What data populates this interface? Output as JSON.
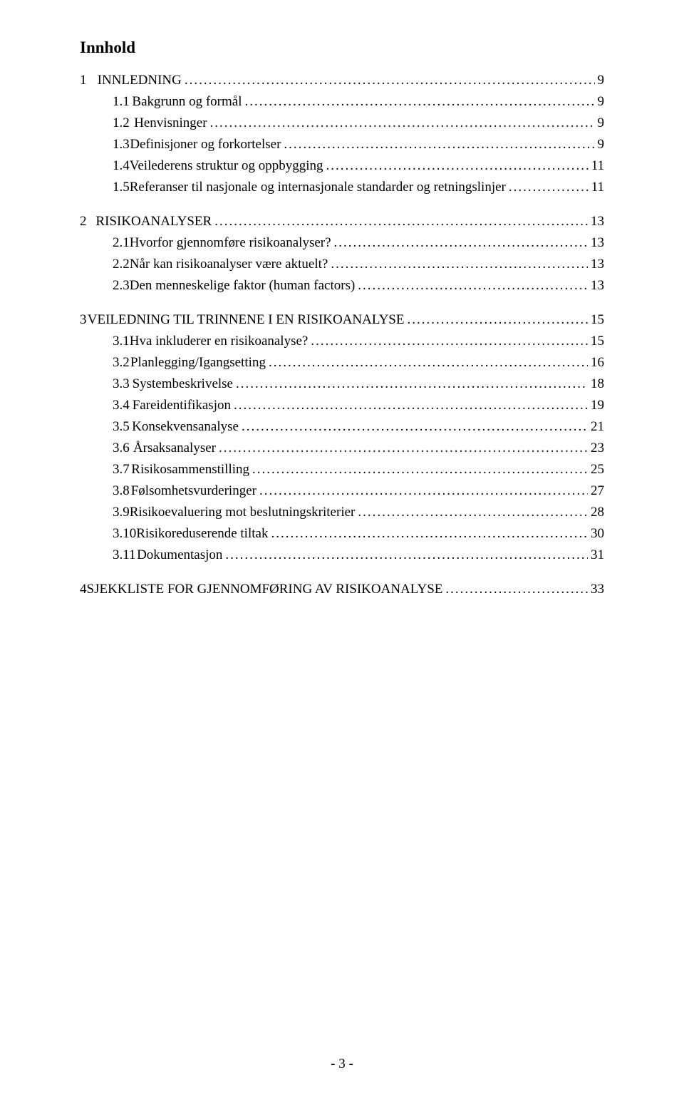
{
  "title": "Innhold",
  "footer": "- 3 -",
  "toc": [
    {
      "level": "l0",
      "num": "1",
      "label": "INNLEDNING",
      "page": "9"
    },
    {
      "level": "l1",
      "num": "1.1",
      "label": "Bakgrunn og formål",
      "page": "9"
    },
    {
      "level": "l1",
      "num": "1.2",
      "label": "Henvisninger",
      "page": "9"
    },
    {
      "level": "l1",
      "num": "1.3",
      "label": "Definisjoner og forkortelser",
      "page": "9"
    },
    {
      "level": "l1",
      "num": "1.4",
      "label": "Veilederens struktur og oppbygging",
      "page": "11"
    },
    {
      "level": "l1",
      "num": "1.5",
      "label": "Referanser til nasjonale og internasjonale standarder og retningslinjer",
      "page": "11"
    },
    {
      "level": "l0",
      "num": "2",
      "label": "RISIKOANALYSER",
      "page": "13"
    },
    {
      "level": "l1",
      "num": "2.1",
      "label": "Hvorfor gjennomføre risikoanalyser?",
      "page": "13"
    },
    {
      "level": "l1",
      "num": "2.2",
      "label": "Når kan risikoanalyser være aktuelt?",
      "page": "13"
    },
    {
      "level": "l1",
      "num": "2.3",
      "label": "Den menneskelige faktor (human factors)",
      "page": "13"
    },
    {
      "level": "l0",
      "num": "3",
      "label": "VEILEDNING TIL TRINNENE I EN RISIKOANALYSE",
      "page": "15"
    },
    {
      "level": "l1",
      "num": "3.1",
      "label": "Hva inkluderer en risikoanalyse?",
      "page": "15"
    },
    {
      "level": "l1",
      "num": "3.2",
      "label": "Planlegging/Igangsetting",
      "page": "16"
    },
    {
      "level": "l1",
      "num": "3.3",
      "label": "Systembeskrivelse",
      "page": "18"
    },
    {
      "level": "l1",
      "num": "3.4",
      "label": "Fareidentifikasjon",
      "page": "19"
    },
    {
      "level": "l1",
      "num": "3.5",
      "label": "Konsekvensanalyse",
      "page": "21"
    },
    {
      "level": "l1",
      "num": "3.6",
      "label": "Årsaksanalyser",
      "page": "23"
    },
    {
      "level": "l1",
      "num": "3.7",
      "label": "Risikosammenstilling",
      "page": "25"
    },
    {
      "level": "l1",
      "num": "3.8",
      "label": "Følsomhetsvurderinger",
      "page": "27"
    },
    {
      "level": "l1",
      "num": "3.9",
      "label": "Risikoevaluering mot beslutningskriterier",
      "page": "28"
    },
    {
      "level": "l1b",
      "num": "3.10",
      "label": "Risikoreduserende tiltak",
      "page": "30"
    },
    {
      "level": "l1b",
      "num": "3.11",
      "label": "Dokumentasjon",
      "page": "31"
    },
    {
      "level": "l0",
      "num": "4",
      "label": "SJEKKLISTE FOR GJENNOMFØRING AV RISIKOANALYSE",
      "page": "33"
    }
  ]
}
